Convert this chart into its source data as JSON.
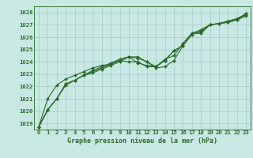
{
  "title": "Graphe pression niveau de la mer (hPa)",
  "bg_color": "#c8e8e4",
  "grid_color": "#a8ccc8",
  "line_color": "#2d6b2d",
  "border_color": "#3a7a3a",
  "ylim": [
    1018.5,
    1028.5
  ],
  "xlim": [
    -0.5,
    23.5
  ],
  "yticks": [
    1019,
    1020,
    1021,
    1022,
    1023,
    1024,
    1025,
    1026,
    1027,
    1028
  ],
  "xticks": [
    0,
    1,
    2,
    3,
    4,
    5,
    6,
    7,
    8,
    9,
    10,
    11,
    12,
    13,
    14,
    15,
    16,
    17,
    18,
    19,
    20,
    21,
    22,
    23
  ],
  "line1": [
    1018.7,
    1020.1,
    1021.0,
    1022.2,
    1022.5,
    1022.9,
    1023.2,
    1023.5,
    1023.8,
    1024.1,
    1024.0,
    1024.0,
    1023.6,
    1023.6,
    1024.1,
    1024.9,
    1025.3,
    1026.3,
    1026.3,
    1027.0,
    1027.1,
    1027.3,
    1027.5,
    1027.8
  ],
  "line2": [
    1018.7,
    1020.1,
    1021.0,
    1022.2,
    1022.5,
    1022.9,
    1023.1,
    1023.4,
    1023.7,
    1024.0,
    1024.4,
    1024.4,
    1024.0,
    1023.5,
    1023.6,
    1024.1,
    1025.3,
    1026.2,
    1026.5,
    1027.0,
    1027.1,
    1027.2,
    1027.4,
    1027.9
  ],
  "line3": [
    1018.7,
    1021.0,
    1022.1,
    1022.6,
    1022.9,
    1023.2,
    1023.5,
    1023.7,
    1023.8,
    1024.2,
    1024.4,
    1023.9,
    1023.7,
    1023.6,
    1024.2,
    1024.5,
    1025.5,
    1026.3,
    1026.6,
    1027.0,
    1027.1,
    1027.2,
    1027.4,
    1027.7
  ],
  "line4": [
    1018.7,
    1020.1,
    1021.0,
    1022.1,
    1022.5,
    1022.9,
    1023.3,
    1023.6,
    1023.9,
    1024.2,
    1024.4,
    1024.3,
    1024.0,
    1023.6,
    1024.1,
    1024.9,
    1025.3,
    1026.3,
    1026.4,
    1027.0,
    1027.1,
    1027.3,
    1027.5,
    1027.9
  ],
  "marker": "D",
  "marker_size": 2.0,
  "line_width": 0.8,
  "tick_fontsize": 5.2,
  "label_fontsize": 6.0
}
